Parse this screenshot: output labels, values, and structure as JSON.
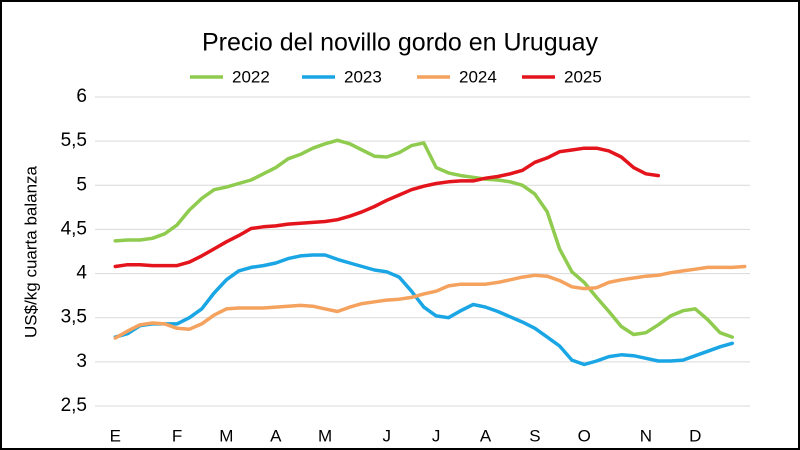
{
  "chart_data": {
    "type": "line",
    "title": "Precio del novillo gordo en Uruguay",
    "y_label": "US$/kg cuarta balanza",
    "x": [
      1,
      2,
      3,
      4,
      5,
      6,
      7,
      8,
      9,
      10,
      11,
      12,
      13,
      14,
      15,
      16,
      17,
      18,
      19,
      20,
      21,
      22,
      23,
      24,
      25,
      26,
      27,
      28,
      29,
      30,
      31,
      32,
      33,
      34,
      35,
      36,
      37,
      38,
      39,
      40,
      41,
      42,
      43,
      44,
      45,
      46,
      47,
      48,
      49,
      50,
      51,
      52
    ],
    "xlim": [
      0,
      53
    ],
    "xticks": [
      {
        "value": 1,
        "label": "E"
      },
      {
        "value": 6,
        "label": "F"
      },
      {
        "value": 10,
        "label": "M"
      },
      {
        "value": 14,
        "label": "A"
      },
      {
        "value": 18,
        "label": "M"
      },
      {
        "value": 23,
        "label": "J"
      },
      {
        "value": 27,
        "label": "J"
      },
      {
        "value": 31,
        "label": "A"
      },
      {
        "value": 35,
        "label": "S"
      },
      {
        "value": 39,
        "label": "O"
      },
      {
        "value": 44,
        "label": "N"
      },
      {
        "value": 48,
        "label": "D"
      }
    ],
    "ylim": [
      2.5,
      6
    ],
    "yticks": [
      {
        "value": 2.5,
        "label": "2,5"
      },
      3,
      {
        "value": 3.5,
        "label": "3,5"
      },
      4,
      {
        "value": 4.5,
        "label": "4,5"
      },
      5,
      {
        "value": 5.5,
        "label": "5,5"
      },
      6
    ],
    "grid": true,
    "legend": "top",
    "series": [
      {
        "name": "2022",
        "color": "#8fcb4e",
        "values": [
          4.37,
          4.38,
          4.38,
          4.4,
          4.45,
          4.55,
          4.72,
          4.85,
          4.95,
          4.98,
          5.02,
          5.06,
          5.13,
          5.2,
          5.3,
          5.35,
          5.42,
          5.47,
          5.51,
          5.47,
          5.4,
          5.33,
          5.32,
          5.37,
          5.45,
          5.48,
          5.2,
          5.14,
          5.11,
          5.09,
          5.07,
          5.06,
          5.04,
          5.0,
          4.9,
          4.7,
          4.28,
          4.02,
          3.9,
          3.73,
          3.57,
          3.4,
          3.31,
          3.33,
          3.42,
          3.52,
          3.58,
          3.6,
          3.48,
          3.33,
          3.28,
          null
        ]
      },
      {
        "name": "2023",
        "color": "#1aa6e4",
        "values": [
          3.28,
          3.32,
          3.41,
          3.43,
          3.43,
          3.43,
          3.5,
          3.6,
          3.78,
          3.93,
          4.03,
          4.07,
          4.09,
          4.12,
          4.17,
          4.2,
          4.21,
          4.21,
          4.16,
          4.12,
          4.08,
          4.04,
          4.02,
          3.96,
          3.8,
          3.62,
          3.52,
          3.5,
          3.58,
          3.65,
          3.62,
          3.57,
          3.51,
          3.45,
          3.38,
          3.28,
          3.18,
          3.02,
          2.97,
          3.01,
          3.06,
          3.08,
          3.07,
          3.04,
          3.01,
          3.01,
          3.02,
          3.07,
          3.12,
          3.17,
          3.21,
          null
        ]
      },
      {
        "name": "2024",
        "color": "#f4a25e",
        "values": [
          3.27,
          3.35,
          3.42,
          3.44,
          3.43,
          3.38,
          3.37,
          3.43,
          3.53,
          3.6,
          3.61,
          3.61,
          3.61,
          3.62,
          3.63,
          3.64,
          3.63,
          3.6,
          3.57,
          3.62,
          3.66,
          3.68,
          3.7,
          3.71,
          3.73,
          3.77,
          3.8,
          3.86,
          3.88,
          3.88,
          3.88,
          3.9,
          3.93,
          3.96,
          3.98,
          3.97,
          3.92,
          3.85,
          3.83,
          3.84,
          3.9,
          3.93,
          3.95,
          3.97,
          3.98,
          4.01,
          4.03,
          4.05,
          4.07,
          4.07,
          4.07,
          4.08
        ]
      },
      {
        "name": "2025",
        "color": "#e3141c",
        "values": [
          4.08,
          4.1,
          4.1,
          4.09,
          4.09,
          4.09,
          4.13,
          4.2,
          4.28,
          4.36,
          4.43,
          4.51,
          4.53,
          4.54,
          4.56,
          4.57,
          4.58,
          4.59,
          4.61,
          4.65,
          4.7,
          4.76,
          4.83,
          4.89,
          4.95,
          4.99,
          5.02,
          5.04,
          5.05,
          5.05,
          5.08,
          5.1,
          5.13,
          5.17,
          5.26,
          5.31,
          5.38,
          5.4,
          5.42,
          5.42,
          5.39,
          5.32,
          5.2,
          5.13,
          5.11,
          null,
          null,
          null,
          null,
          null,
          null,
          null
        ]
      }
    ]
  }
}
